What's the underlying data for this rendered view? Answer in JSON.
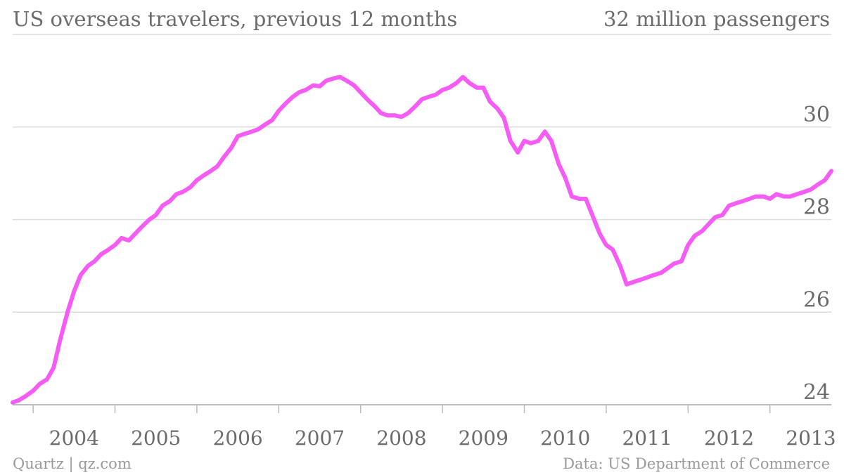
{
  "header": {
    "title": "US overseas travelers, previous 12 months",
    "unit_label": "32 million passengers"
  },
  "footer": {
    "credit": "Quartz | qz.com",
    "source": "Data: US Department of Commerce"
  },
  "colors": {
    "line": "#f45cf4",
    "grid": "#dcdcdc",
    "text": "#6b6b6b"
  },
  "chart_data": {
    "type": "line",
    "title": "US overseas travelers, previous 12 months",
    "ylabel": "32 million passengers",
    "xlabel": "",
    "ylim": [
      24,
      32
    ],
    "xlim": [
      2003.75,
      2013.75
    ],
    "grid": true,
    "y_ticks": [
      "24",
      "26",
      "28",
      "30"
    ],
    "x_ticks": [
      "2004",
      "2005",
      "2006",
      "2007",
      "2008",
      "2009",
      "2010",
      "2011",
      "2012",
      "2013"
    ],
    "series": [
      {
        "values": [
          [
            2003.75,
            24.05
          ],
          [
            2003.83,
            24.1
          ],
          [
            2003.92,
            24.2
          ],
          [
            2004.0,
            24.3
          ],
          [
            2004.08,
            24.45
          ],
          [
            2004.17,
            24.55
          ],
          [
            2004.25,
            24.8
          ],
          [
            2004.33,
            25.4
          ],
          [
            2004.42,
            26.0
          ],
          [
            2004.5,
            26.45
          ],
          [
            2004.58,
            26.8
          ],
          [
            2004.67,
            27.0
          ],
          [
            2004.75,
            27.1
          ],
          [
            2004.83,
            27.25
          ],
          [
            2004.92,
            27.35
          ],
          [
            2005.0,
            27.45
          ],
          [
            2005.08,
            27.6
          ],
          [
            2005.17,
            27.55
          ],
          [
            2005.25,
            27.7
          ],
          [
            2005.33,
            27.85
          ],
          [
            2005.42,
            28.0
          ],
          [
            2005.5,
            28.1
          ],
          [
            2005.58,
            28.3
          ],
          [
            2005.67,
            28.4
          ],
          [
            2005.75,
            28.55
          ],
          [
            2005.83,
            28.6
          ],
          [
            2005.92,
            28.7
          ],
          [
            2006.0,
            28.85
          ],
          [
            2006.08,
            28.95
          ],
          [
            2006.17,
            29.05
          ],
          [
            2006.25,
            29.15
          ],
          [
            2006.33,
            29.35
          ],
          [
            2006.42,
            29.55
          ],
          [
            2006.5,
            29.8
          ],
          [
            2006.58,
            29.85
          ],
          [
            2006.67,
            29.9
          ],
          [
            2006.75,
            29.95
          ],
          [
            2006.83,
            30.05
          ],
          [
            2006.92,
            30.15
          ],
          [
            2007.0,
            30.35
          ],
          [
            2007.08,
            30.5
          ],
          [
            2007.17,
            30.65
          ],
          [
            2007.25,
            30.75
          ],
          [
            2007.33,
            30.8
          ],
          [
            2007.42,
            30.9
          ],
          [
            2007.5,
            30.88
          ],
          [
            2007.58,
            31.0
          ],
          [
            2007.67,
            31.05
          ],
          [
            2007.75,
            31.08
          ],
          [
            2007.83,
            31.0
          ],
          [
            2007.92,
            30.9
          ],
          [
            2008.0,
            30.75
          ],
          [
            2008.08,
            30.6
          ],
          [
            2008.17,
            30.45
          ],
          [
            2008.25,
            30.3
          ],
          [
            2008.33,
            30.25
          ],
          [
            2008.42,
            30.25
          ],
          [
            2008.5,
            30.22
          ],
          [
            2008.58,
            30.3
          ],
          [
            2008.67,
            30.45
          ],
          [
            2008.75,
            30.6
          ],
          [
            2008.83,
            30.65
          ],
          [
            2008.92,
            30.7
          ],
          [
            2009.0,
            30.8
          ],
          [
            2009.08,
            30.85
          ],
          [
            2009.17,
            30.95
          ],
          [
            2009.25,
            31.08
          ],
          [
            2009.33,
            30.95
          ],
          [
            2009.42,
            30.85
          ],
          [
            2009.5,
            30.85
          ],
          [
            2009.58,
            30.55
          ],
          [
            2009.67,
            30.4
          ],
          [
            2009.75,
            30.2
          ],
          [
            2009.83,
            29.7
          ],
          [
            2009.92,
            29.45
          ],
          [
            2010.0,
            29.7
          ],
          [
            2010.08,
            29.65
          ],
          [
            2010.17,
            29.7
          ],
          [
            2010.25,
            29.9
          ],
          [
            2010.33,
            29.7
          ],
          [
            2010.42,
            29.2
          ],
          [
            2010.5,
            28.9
          ],
          [
            2010.58,
            28.5
          ],
          [
            2010.67,
            28.45
          ],
          [
            2010.75,
            28.45
          ],
          [
            2010.83,
            28.1
          ],
          [
            2010.92,
            27.7
          ],
          [
            2011.0,
            27.45
          ],
          [
            2011.08,
            27.35
          ],
          [
            2011.17,
            27.0
          ],
          [
            2011.25,
            26.6
          ],
          [
            2011.33,
            26.65
          ],
          [
            2011.42,
            26.7
          ],
          [
            2011.5,
            26.75
          ],
          [
            2011.58,
            26.8
          ],
          [
            2011.67,
            26.85
          ],
          [
            2011.75,
            26.95
          ],
          [
            2011.83,
            27.05
          ],
          [
            2011.92,
            27.1
          ],
          [
            2012.0,
            27.45
          ],
          [
            2012.08,
            27.65
          ],
          [
            2012.17,
            27.75
          ],
          [
            2012.25,
            27.9
          ],
          [
            2012.33,
            28.05
          ],
          [
            2012.42,
            28.1
          ],
          [
            2012.5,
            28.3
          ],
          [
            2012.58,
            28.35
          ],
          [
            2012.67,
            28.4
          ],
          [
            2012.75,
            28.45
          ],
          [
            2012.83,
            28.5
          ],
          [
            2012.92,
            28.5
          ],
          [
            2013.0,
            28.45
          ],
          [
            2013.08,
            28.55
          ],
          [
            2013.17,
            28.5
          ],
          [
            2013.25,
            28.5
          ],
          [
            2013.33,
            28.55
          ],
          [
            2013.42,
            28.6
          ],
          [
            2013.5,
            28.65
          ],
          [
            2013.58,
            28.75
          ],
          [
            2013.67,
            28.85
          ],
          [
            2013.75,
            29.05
          ]
        ]
      }
    ]
  }
}
